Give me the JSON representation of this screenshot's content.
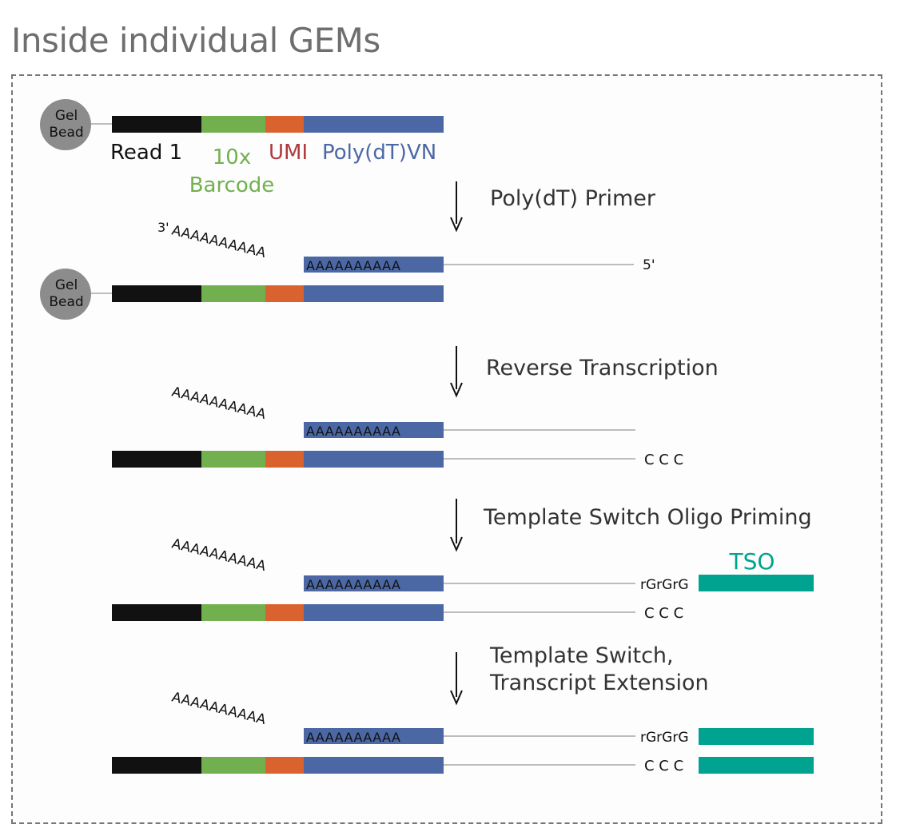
{
  "title": "Inside individual GEMs",
  "bead_label_line1": "Gel",
  "bead_label_line2": "Bead",
  "segments": {
    "read1": "Read 1",
    "barcode_line1": "10x",
    "barcode_line2": "Barcode",
    "umi": "UMI",
    "polydt": "Poly(dT)VN"
  },
  "steps": [
    {
      "label": "Poly(dT) Primer"
    },
    {
      "label": "Reverse Transcription"
    },
    {
      "label": "Template Switch Oligo Priming"
    },
    {
      "label_line1": "Template Switch,",
      "label_line2": "Transcript Extension"
    }
  ],
  "polyA_tail": "AAAAAAAAAA",
  "polyA_inbar": "AAAAAAAAAA",
  "three_prime": "3'",
  "five_prime": "5'",
  "ccc": "C C C",
  "rgrgrg": "rGrGrG",
  "tso": "TSO",
  "colors": {
    "black": "#111111",
    "green": "#72b04f",
    "orange": "#d9622e",
    "blue": "#4b68a5",
    "teal": "#00a38f",
    "umi_text": "#b0393b",
    "line": "#bdbdbd",
    "bead": "#8c8c8c"
  }
}
